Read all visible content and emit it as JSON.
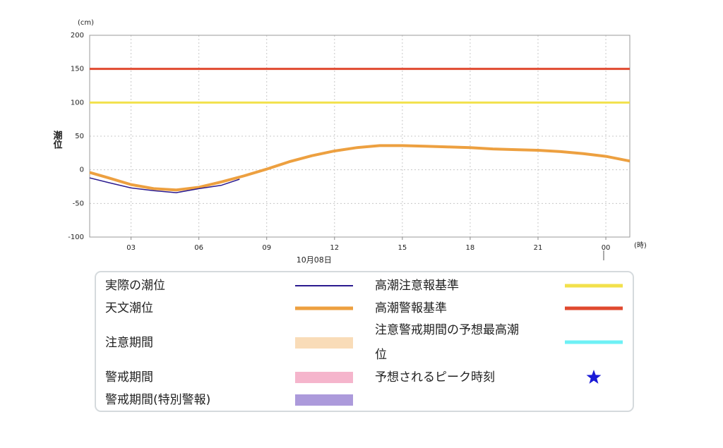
{
  "chart_data": {
    "type": "line",
    "y_unit": "(cm)",
    "ylabel": "潮位",
    "x_unit": "(時)",
    "date_label": "10月08日",
    "xlim": [
      1.17,
      25.06
    ],
    "ylim": [
      -100,
      200
    ],
    "xticks": [
      {
        "value": 3,
        "label": "03"
      },
      {
        "value": 6,
        "label": "06"
      },
      {
        "value": 9,
        "label": "09"
      },
      12,
      15,
      18,
      21,
      {
        "value": 24,
        "label": "00"
      }
    ],
    "yticks": [
      -100,
      -50,
      0,
      50,
      100,
      150,
      200
    ],
    "grid": true,
    "series": [
      {
        "name": "実際の潮位",
        "color": "#2b1b8f",
        "x": [
          1.17,
          2,
          3,
          4,
          5,
          6,
          7,
          7.8
        ],
        "values": [
          -12,
          -19,
          -27,
          -31,
          -34,
          -28,
          -23,
          -14
        ]
      },
      {
        "name": "天文潮位",
        "color": "#eda040",
        "x": [
          1.17,
          2,
          3,
          4,
          5,
          6,
          7,
          8,
          9,
          10,
          11,
          12,
          13,
          14,
          15,
          16,
          17,
          18,
          19,
          20,
          21,
          22,
          23,
          24,
          25.06
        ],
        "values": [
          -4,
          -12,
          -22,
          -28,
          -30,
          -26,
          -18,
          -9,
          1,
          12,
          21,
          28,
          33,
          36,
          36,
          35,
          34,
          33,
          31,
          30,
          29,
          27,
          24,
          20,
          13
        ]
      }
    ],
    "reference_lines": [
      {
        "name": "高潮注意報基準",
        "value": 100,
        "color": "#f2e14c"
      },
      {
        "name": "高潮警報基準",
        "value": 150,
        "color": "#e0492f"
      }
    ],
    "legend_extra": [
      {
        "name": "注意期間",
        "color": "#f9dcb8",
        "style": "band"
      },
      {
        "name": "警戒期間",
        "color": "#f5b5cc",
        "style": "band"
      },
      {
        "name": "警戒期間(特別警報)",
        "color": "#ac9adb",
        "style": "band"
      },
      {
        "name": "注意警戒期間の予想最高潮位",
        "color": "#6ef0f5",
        "style": "line"
      },
      {
        "name": "予想されるピーク時刻",
        "color": "#1a1ad6",
        "style": "star"
      }
    ]
  }
}
